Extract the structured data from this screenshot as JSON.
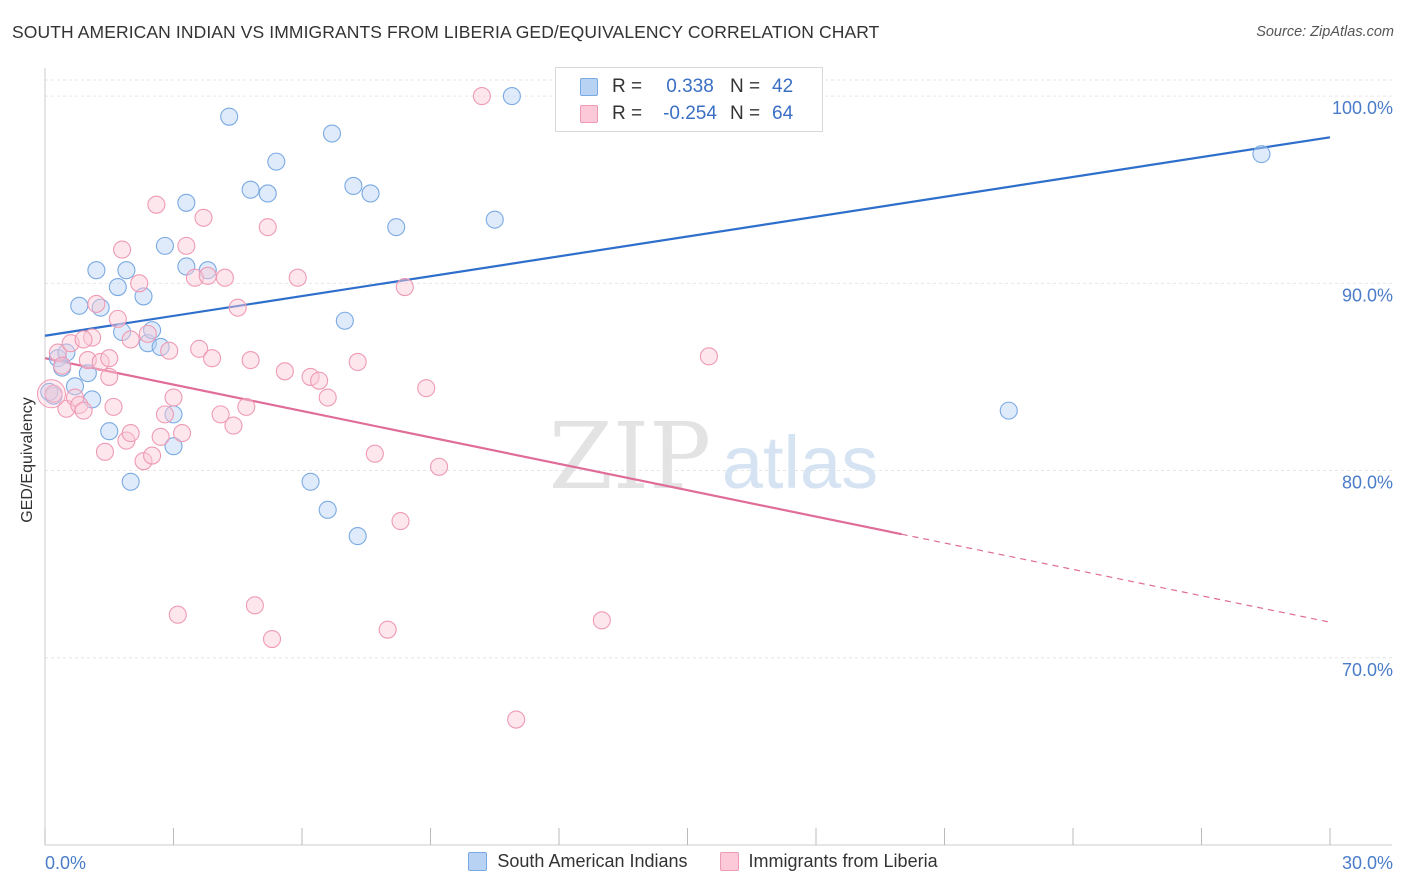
{
  "title": "SOUTH AMERICAN INDIAN VS IMMIGRANTS FROM LIBERIA GED/EQUIVALENCY CORRELATION CHART",
  "source": "Source: ZipAtlas.com",
  "watermark": {
    "zip": "ZIP",
    "atlas": "atlas"
  },
  "legend": {
    "r_label": "R =",
    "n_label": "N =",
    "rows": [
      {
        "r_value": "0.338",
        "n_value": "42",
        "fill": "#b8d2f3",
        "stroke": "#7aaae3"
      },
      {
        "r_value": "-0.254",
        "n_value": "64",
        "fill": "#fbc9d8",
        "stroke": "#ef9ab5"
      }
    ]
  },
  "bottom_legend": [
    {
      "label": "South American Indians",
      "fill": "#b8d2f3",
      "stroke": "#7aaae3"
    },
    {
      "label": "Immigrants from Liberia",
      "fill": "#fbc9d8",
      "stroke": "#ef9ab5"
    }
  ],
  "chart_data": {
    "type": "scatter",
    "title": "SOUTH AMERICAN INDIAN VS IMMIGRANTS FROM LIBERIA GED/EQUIVALENCY CORRELATION CHART",
    "xlabel": "",
    "ylabel": "GED/Equivalency",
    "xlim": [
      0,
      30
    ],
    "ylim": [
      60,
      101.5
    ],
    "x_tick_labels": [
      "0.0%",
      "30.0%"
    ],
    "y_ticks": [
      70,
      80,
      90,
      100
    ],
    "y_tick_labels": [
      "70.0%",
      "80.0%",
      "90.0%",
      "100.0%"
    ],
    "grid": true,
    "legend_position": "top-center",
    "colors": {
      "blue_line": "#2f6fcc",
      "pink_line": "#e06c98",
      "axis_text": "#4a7cc9"
    },
    "series": [
      {
        "name": "South American Indians",
        "color": "#7aaae3",
        "trend": {
          "r": 0.338,
          "n": 42,
          "x": [
            0,
            30
          ],
          "y": [
            87.2,
            97.8
          ]
        },
        "points": [
          [
            0.2,
            84.0
          ],
          [
            0.3,
            86.0
          ],
          [
            0.4,
            85.5
          ],
          [
            0.5,
            86.3
          ],
          [
            0.7,
            84.5
          ],
          [
            0.8,
            88.8
          ],
          [
            1.0,
            85.2
          ],
          [
            1.1,
            83.8
          ],
          [
            1.2,
            90.7
          ],
          [
            1.3,
            88.7
          ],
          [
            1.5,
            82.1
          ],
          [
            1.7,
            89.8
          ],
          [
            1.8,
            87.4
          ],
          [
            1.9,
            90.7
          ],
          [
            2.0,
            79.4
          ],
          [
            2.3,
            89.3
          ],
          [
            2.4,
            86.8
          ],
          [
            2.5,
            87.5
          ],
          [
            2.7,
            86.6
          ],
          [
            2.8,
            92.0
          ],
          [
            3.0,
            83.0
          ],
          [
            3.0,
            81.3
          ],
          [
            3.3,
            94.3
          ],
          [
            3.3,
            90.9
          ],
          [
            3.8,
            90.7
          ],
          [
            4.3,
            98.9
          ],
          [
            4.8,
            95.0
          ],
          [
            5.2,
            94.8
          ],
          [
            5.4,
            96.5
          ],
          [
            6.2,
            79.4
          ],
          [
            6.6,
            77.9
          ],
          [
            6.7,
            98.0
          ],
          [
            7.0,
            88.0
          ],
          [
            7.2,
            95.2
          ],
          [
            7.3,
            76.5
          ],
          [
            7.6,
            94.8
          ],
          [
            8.2,
            93.0
          ],
          [
            10.5,
            93.4
          ],
          [
            10.9,
            100.0
          ],
          [
            22.5,
            83.2
          ],
          [
            28.4,
            96.9
          ],
          [
            0.1,
            84.2
          ]
        ]
      },
      {
        "name": "Immigrants from Liberia",
        "color": "#ef9ab5",
        "trend": {
          "r": -0.254,
          "n": 64,
          "x": [
            0,
            20
          ],
          "y": [
            86.0,
            76.6
          ],
          "dashed_x": [
            20,
            30
          ],
          "dashed_y": [
            76.6,
            71.9
          ]
        },
        "points": [
          [
            0.2,
            84.1
          ],
          [
            0.3,
            86.3
          ],
          [
            0.4,
            85.6
          ],
          [
            0.5,
            83.3
          ],
          [
            0.6,
            86.8
          ],
          [
            0.7,
            83.9
          ],
          [
            0.8,
            83.5
          ],
          [
            0.9,
            83.2
          ],
          [
            1.0,
            85.9
          ],
          [
            1.1,
            87.1
          ],
          [
            1.2,
            88.9
          ],
          [
            1.3,
            85.8
          ],
          [
            1.4,
            81.0
          ],
          [
            1.5,
            85.0
          ],
          [
            1.6,
            83.4
          ],
          [
            1.7,
            88.1
          ],
          [
            1.8,
            91.8
          ],
          [
            1.9,
            81.6
          ],
          [
            2.0,
            82.0
          ],
          [
            2.0,
            87.0
          ],
          [
            2.2,
            90.0
          ],
          [
            2.3,
            80.5
          ],
          [
            2.4,
            87.3
          ],
          [
            2.5,
            80.8
          ],
          [
            2.6,
            94.2
          ],
          [
            2.7,
            81.8
          ],
          [
            2.8,
            83.0
          ],
          [
            2.9,
            86.4
          ],
          [
            3.0,
            83.9
          ],
          [
            3.1,
            72.3
          ],
          [
            3.2,
            82.0
          ],
          [
            3.3,
            92.0
          ],
          [
            3.5,
            90.3
          ],
          [
            3.6,
            86.5
          ],
          [
            3.7,
            93.5
          ],
          [
            3.8,
            90.4
          ],
          [
            3.9,
            86.0
          ],
          [
            4.1,
            83.0
          ],
          [
            4.2,
            90.3
          ],
          [
            4.4,
            82.4
          ],
          [
            4.5,
            88.7
          ],
          [
            4.7,
            83.4
          ],
          [
            4.8,
            85.9
          ],
          [
            4.9,
            72.8
          ],
          [
            5.2,
            93.0
          ],
          [
            5.3,
            71.0
          ],
          [
            5.6,
            85.3
          ],
          [
            5.9,
            90.3
          ],
          [
            6.2,
            85.0
          ],
          [
            6.4,
            84.8
          ],
          [
            6.6,
            83.9
          ],
          [
            7.3,
            85.8
          ],
          [
            7.7,
            80.9
          ],
          [
            8.0,
            71.5
          ],
          [
            8.3,
            77.3
          ],
          [
            8.4,
            89.8
          ],
          [
            8.9,
            84.4
          ],
          [
            9.2,
            80.2
          ],
          [
            10.2,
            100.0
          ],
          [
            11.0,
            66.7
          ],
          [
            13.0,
            72.0
          ],
          [
            15.5,
            86.1
          ],
          [
            1.5,
            86.0
          ],
          [
            0.9,
            87.0
          ]
        ]
      }
    ]
  }
}
